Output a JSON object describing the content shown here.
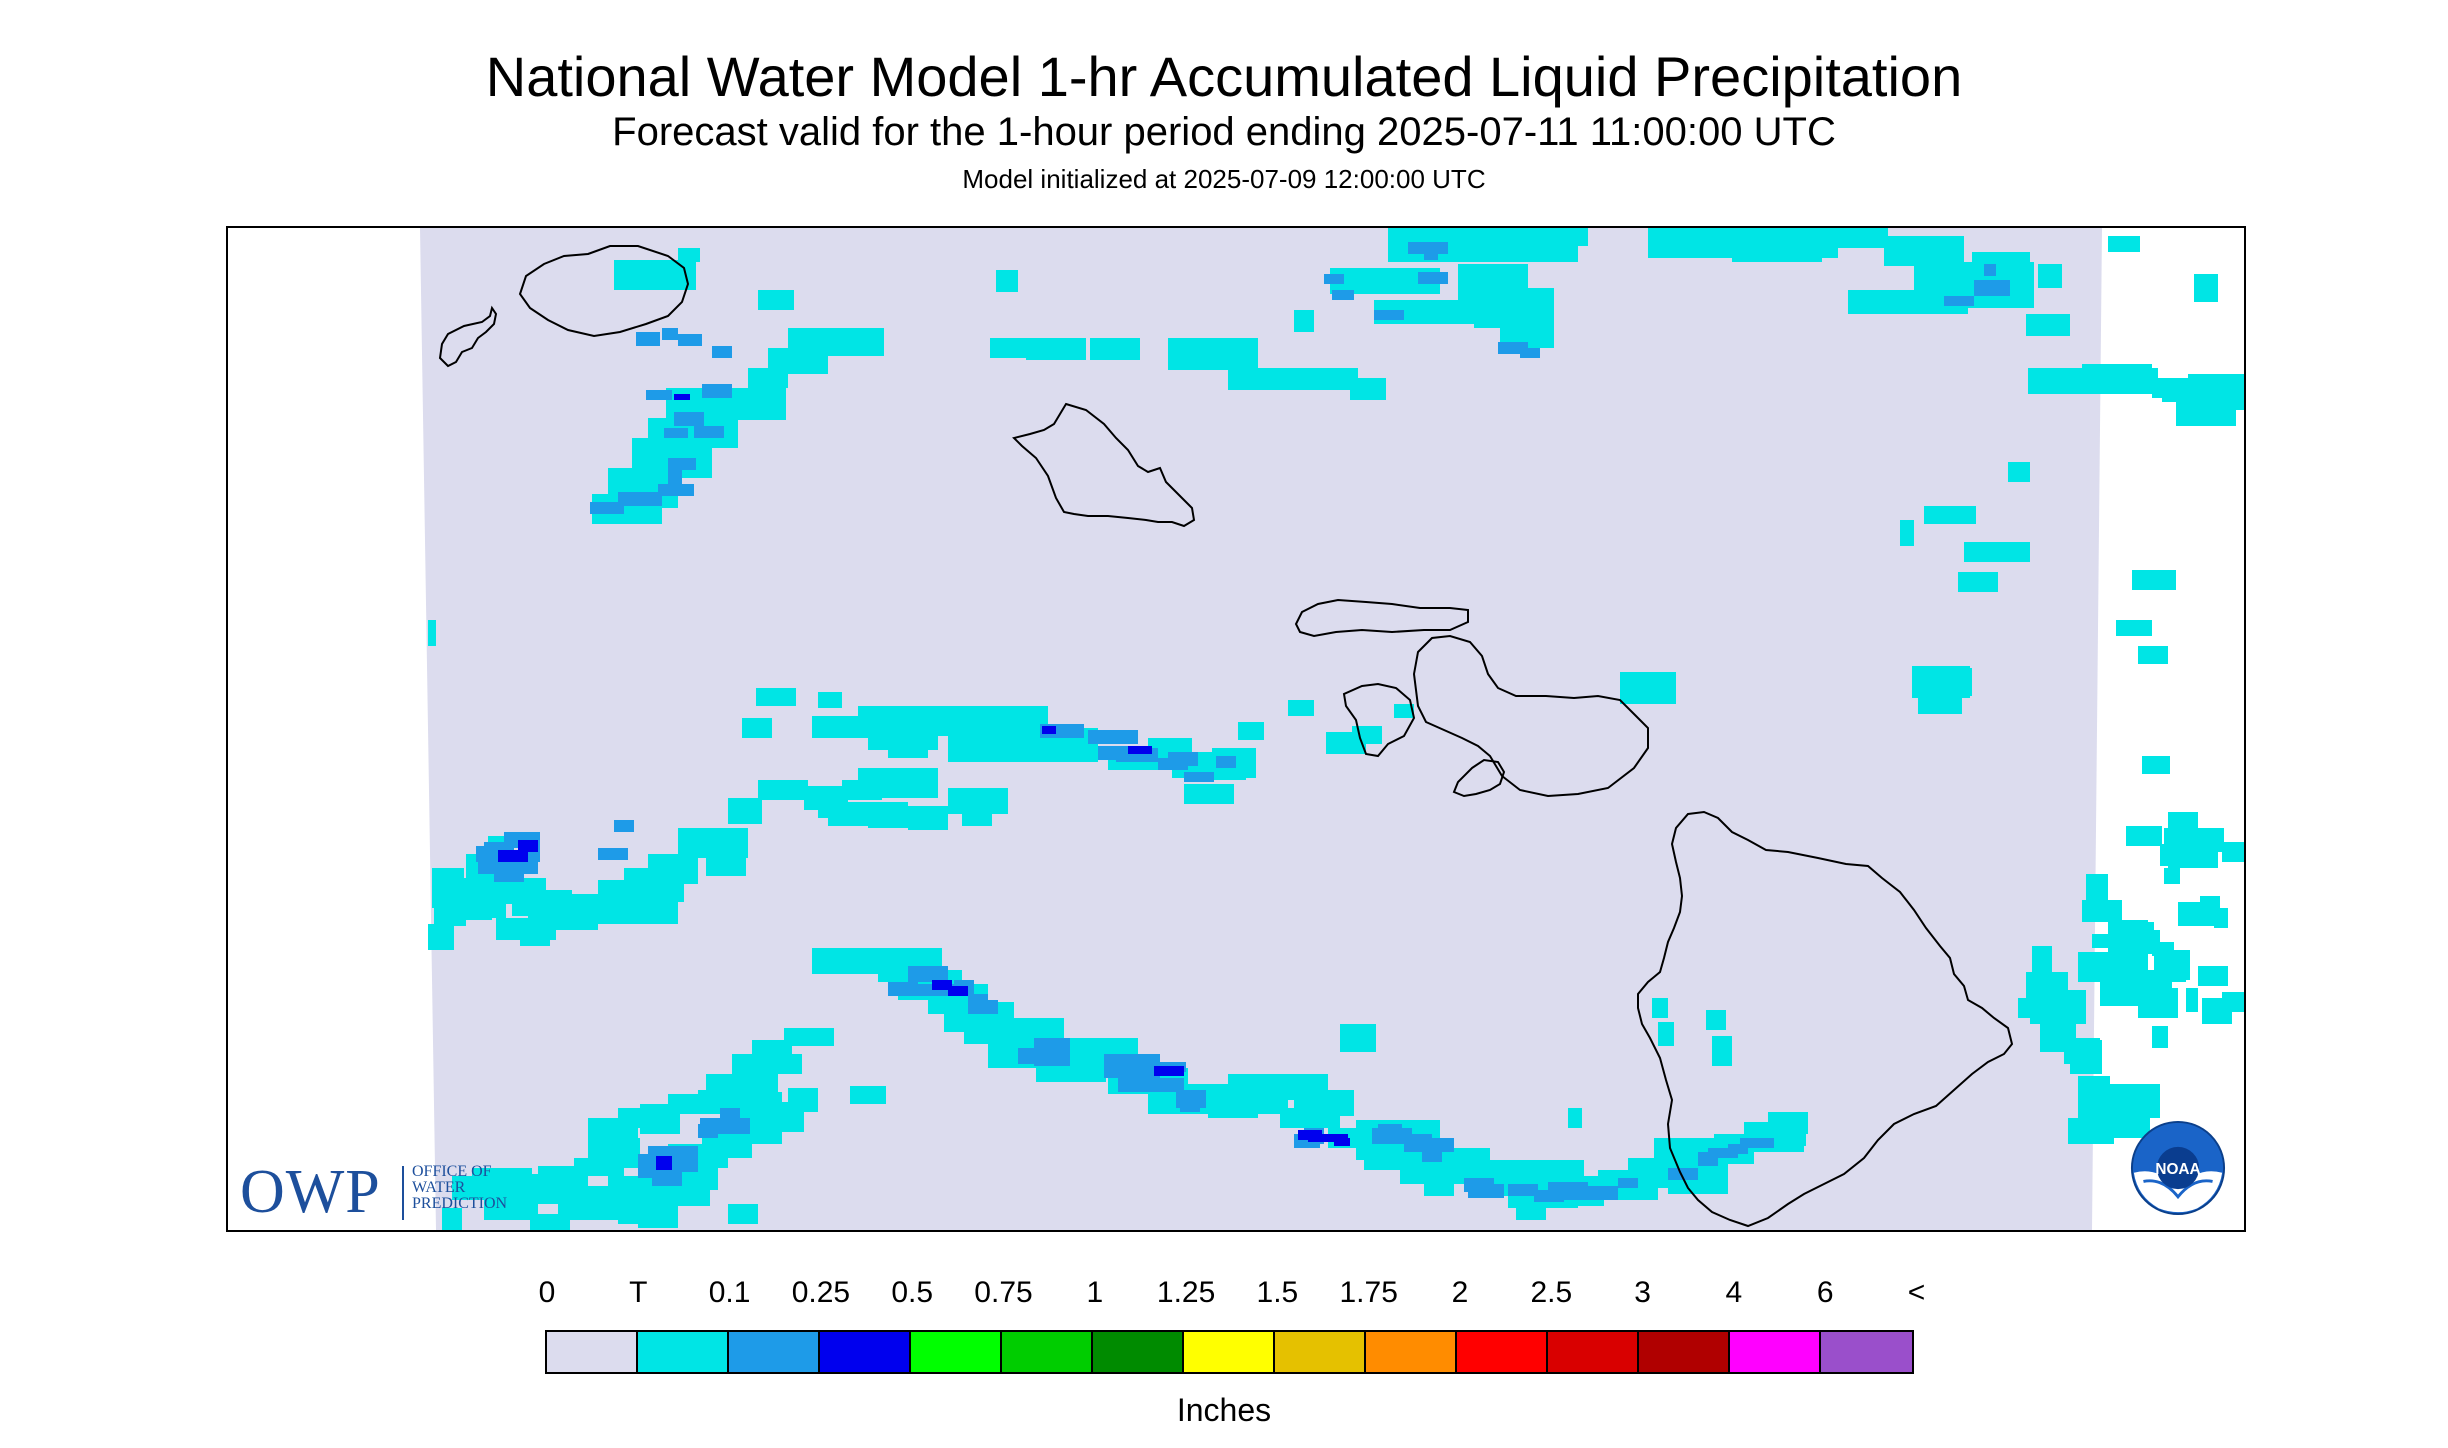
{
  "header": {
    "title": "National Water Model 1-hr Accumulated Liquid Precipitation",
    "subtitle": "Forecast valid for the 1-hour period ending 2025-07-11 11:00:00 UTC",
    "init_text": "Model initialized at 2025-07-09 12:00:00 UTC"
  },
  "map": {
    "region": "Hawaiian Islands",
    "background_color": "#dcdcee",
    "coastline_color": "#000000"
  },
  "logos": {
    "owp": {
      "letters": "OWP",
      "line1": "OFFICE OF",
      "line2": "WATER",
      "line3": "PREDICTION",
      "color": "#1d4f9c"
    },
    "noaa": {
      "text": "NOAA",
      "icon": "noaa-emblem-icon"
    }
  },
  "legend": {
    "units": "Inches",
    "labels": [
      "0",
      "T",
      "0.1",
      "0.25",
      "0.5",
      "0.75",
      "1",
      "1.25",
      "1.5",
      "1.75",
      "2",
      "2.5",
      "3",
      "4",
      "6",
      "<"
    ],
    "colors": [
      "#dcdcee",
      "#00e5e5",
      "#1e9be8",
      "#0000ee",
      "#00ff00",
      "#00cd00",
      "#008b00",
      "#ffff00",
      "#e5c100",
      "#ff8c00",
      "#ff0000",
      "#d90000",
      "#b00000",
      "#ff00ff",
      "#9a4fcb"
    ]
  }
}
